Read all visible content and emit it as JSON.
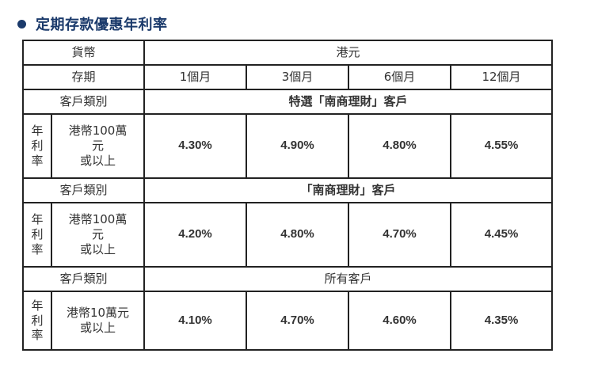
{
  "heading": "定期存款優惠年利率",
  "table": {
    "currency_label": "貨幣",
    "currency_value": "港元",
    "term_label": "存期",
    "terms": [
      "1個月",
      "3個月",
      "6個月",
      "12個月"
    ],
    "rate_label_lines": [
      "年",
      "利",
      "率"
    ],
    "segments": [
      {
        "type_label": "客戶類別",
        "segment_name": "特選「南商理財」客戶",
        "amount_lines": [
          "港幣100萬",
          "元",
          "或以上"
        ],
        "rates": [
          "4.30%",
          "4.90%",
          "4.80%",
          "4.55%"
        ]
      },
      {
        "type_label": "客戶類別",
        "segment_name": "「南商理財」客戶",
        "amount_lines": [
          "港幣100萬",
          "元",
          "或以上"
        ],
        "rates": [
          "4.20%",
          "4.80%",
          "4.70%",
          "4.45%"
        ]
      },
      {
        "type_label": "客戶類別",
        "segment_name": "所有客戶",
        "amount_lines": [
          "港幣10萬元",
          "或以上"
        ],
        "rates": [
          "4.10%",
          "4.70%",
          "4.60%",
          "4.35%"
        ]
      }
    ]
  }
}
